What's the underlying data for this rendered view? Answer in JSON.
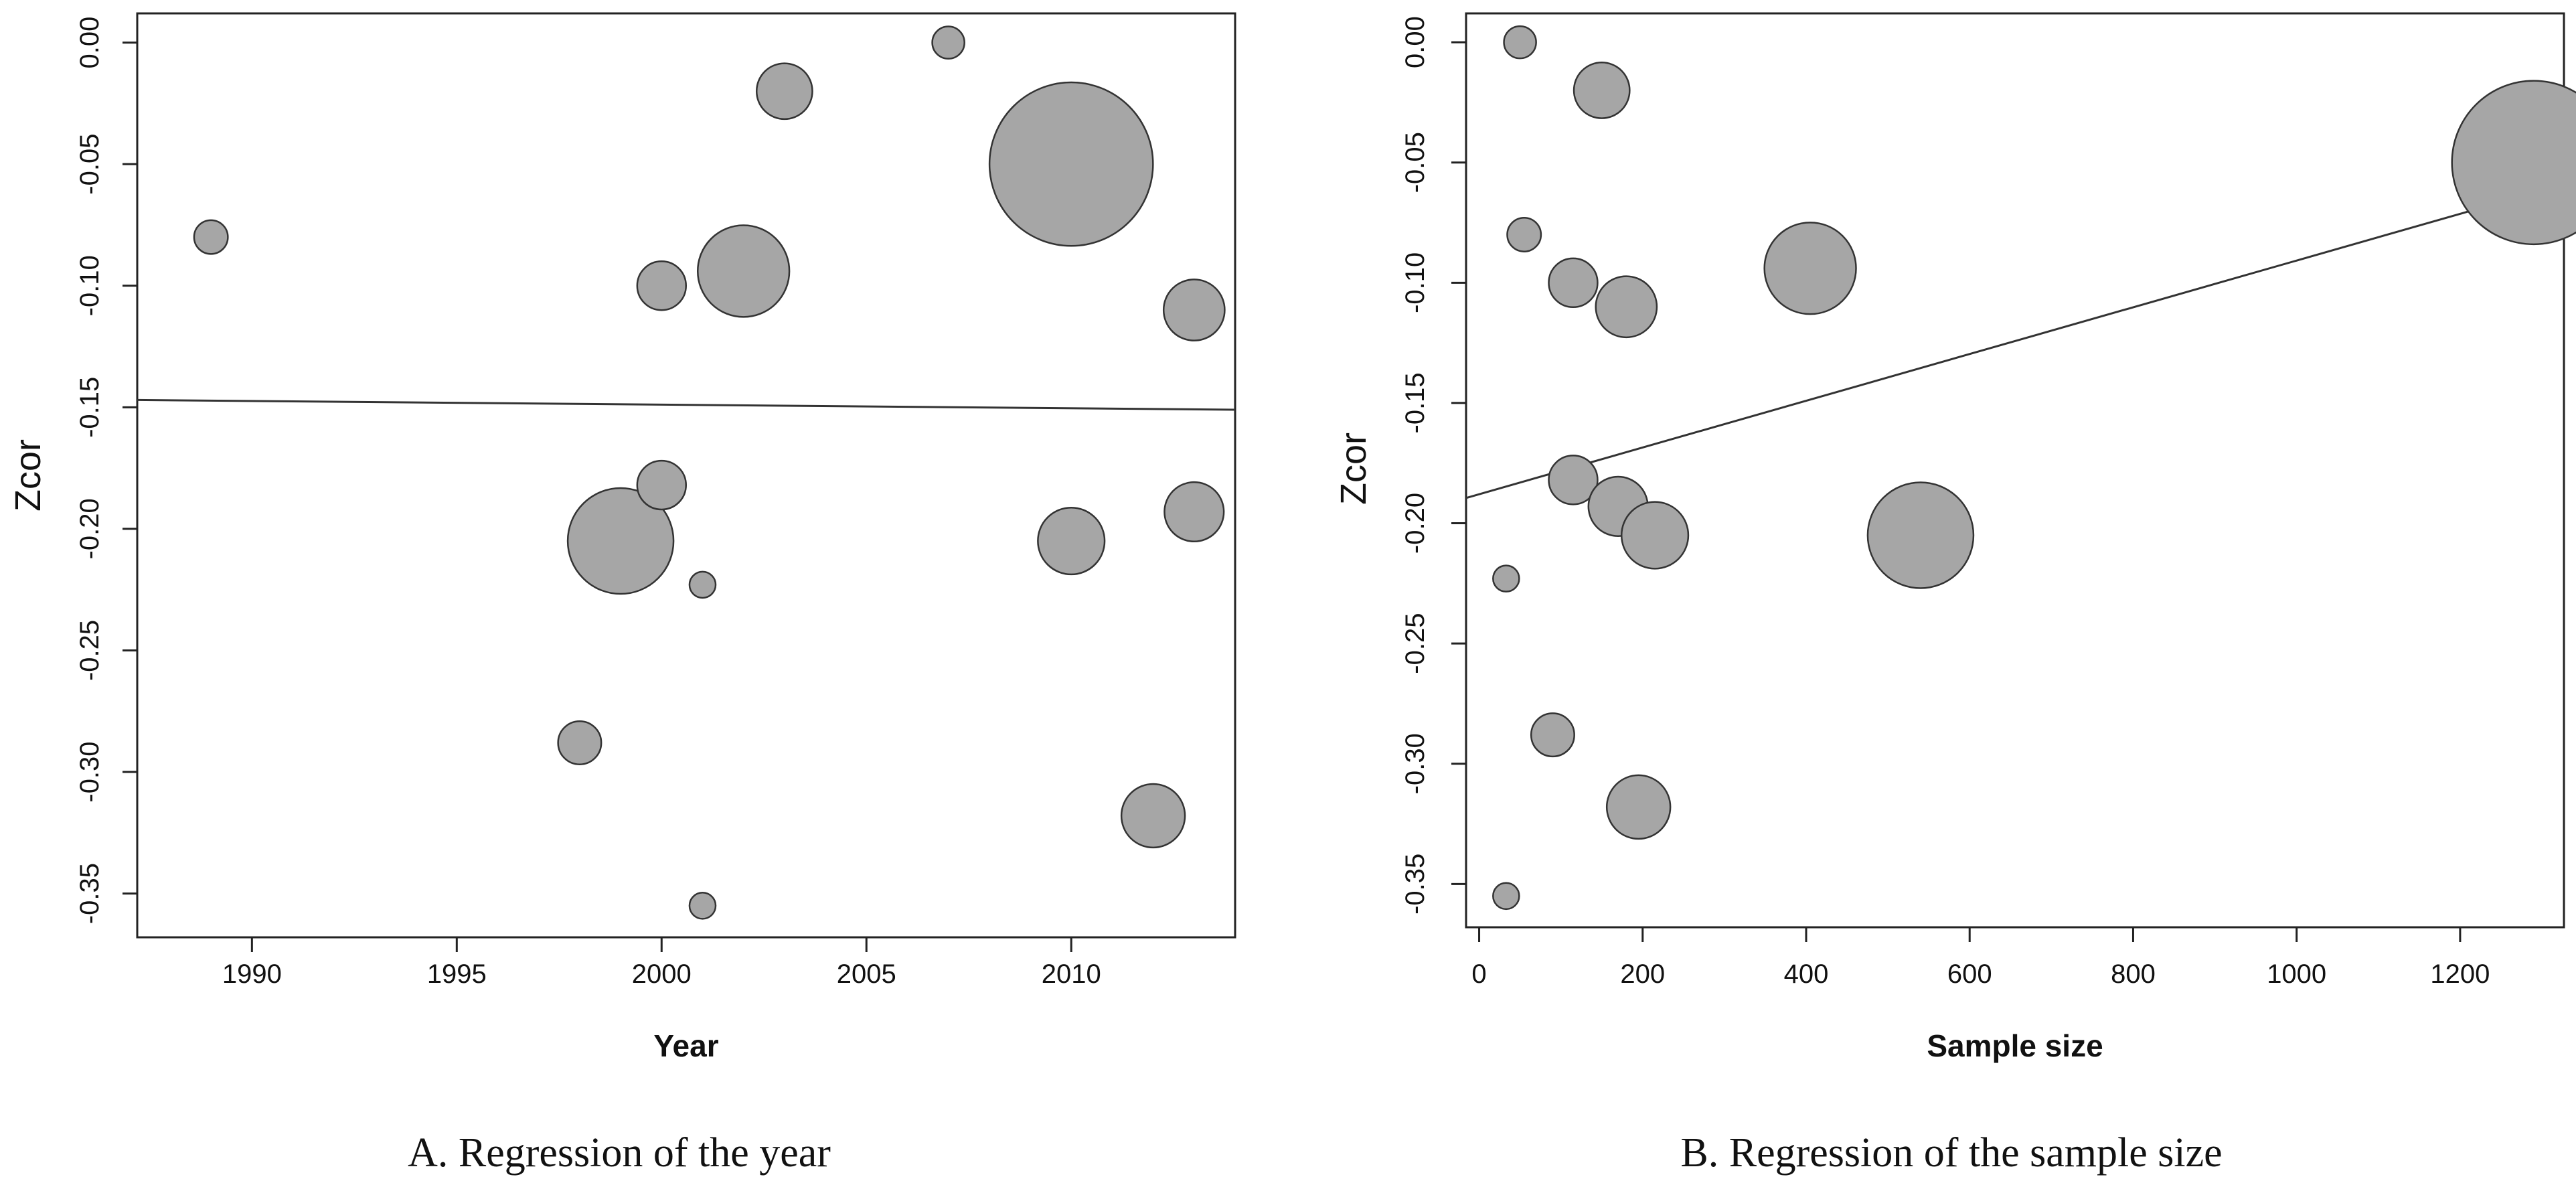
{
  "chart_data": [
    {
      "type": "scatter",
      "caption": "A. Regression of the year",
      "xlabel": "Year",
      "ylabel": "Zcor",
      "xlim": [
        1987.2,
        2014.0
      ],
      "ylim": [
        -0.368,
        0.012
      ],
      "xticks": [
        "1990",
        "1995",
        "2000",
        "2005",
        "2010"
      ],
      "yticks": [
        "0.00",
        "-0.05",
        "-0.10",
        "-0.15",
        "-0.20",
        "-0.25",
        "-0.30",
        "-0.35"
      ],
      "grid": false,
      "bubble_size_variable": "Sample size",
      "points": [
        {
          "x": 1989,
          "y": -0.08,
          "n": 55
        },
        {
          "x": 1998,
          "y": -0.288,
          "n": 90
        },
        {
          "x": 1999,
          "y": -0.205,
          "n": 540
        },
        {
          "x": 2000,
          "y": -0.1,
          "n": 115
        },
        {
          "x": 2000,
          "y": -0.182,
          "n": 115
        },
        {
          "x": 2001,
          "y": -0.223,
          "n": 33
        },
        {
          "x": 2001,
          "y": -0.355,
          "n": 33
        },
        {
          "x": 2002,
          "y": -0.094,
          "n": 405
        },
        {
          "x": 2003,
          "y": -0.02,
          "n": 150
        },
        {
          "x": 2007,
          "y": 0.0,
          "n": 50
        },
        {
          "x": 2010,
          "y": -0.05,
          "n": 1290
        },
        {
          "x": 2010,
          "y": -0.205,
          "n": 215
        },
        {
          "x": 2012,
          "y": -0.318,
          "n": 195
        },
        {
          "x": 2013,
          "y": -0.11,
          "n": 180
        },
        {
          "x": 2013,
          "y": -0.193,
          "n": 170
        }
      ],
      "regression_line": {
        "x": [
          1987.2,
          2014.0
        ],
        "y": [
          -0.147,
          -0.151
        ]
      }
    },
    {
      "type": "scatter",
      "caption": "B. Regression of the sample size",
      "xlabel": "Sample size",
      "ylabel": "Zcor",
      "xlim": [
        -16,
        1327
      ],
      "ylim": [
        -0.368,
        0.012
      ],
      "xticks": [
        "0",
        "200",
        "400",
        "600",
        "800",
        "1000",
        "1200"
      ],
      "yticks": [
        "0.00",
        "-0.05",
        "-0.10",
        "-0.15",
        "-0.20",
        "-0.25",
        "-0.30",
        "-0.35"
      ],
      "grid": false,
      "bubble_size_variable": "Sample size",
      "points": [
        {
          "x": 50,
          "y": 0.0,
          "n": 50
        },
        {
          "x": 150,
          "y": -0.02,
          "n": 150
        },
        {
          "x": 1290,
          "y": -0.05,
          "n": 1290
        },
        {
          "x": 55,
          "y": -0.08,
          "n": 55
        },
        {
          "x": 405,
          "y": -0.094,
          "n": 405
        },
        {
          "x": 115,
          "y": -0.1,
          "n": 115
        },
        {
          "x": 180,
          "y": -0.11,
          "n": 180
        },
        {
          "x": 115,
          "y": -0.182,
          "n": 115
        },
        {
          "x": 170,
          "y": -0.193,
          "n": 170
        },
        {
          "x": 215,
          "y": -0.205,
          "n": 215
        },
        {
          "x": 540,
          "y": -0.205,
          "n": 540
        },
        {
          "x": 33,
          "y": -0.223,
          "n": 33
        },
        {
          "x": 90,
          "y": -0.288,
          "n": 90
        },
        {
          "x": 195,
          "y": -0.318,
          "n": 195
        },
        {
          "x": 33,
          "y": -0.355,
          "n": 33
        }
      ],
      "regression_line": {
        "x": [
          -16,
          1327
        ],
        "y": [
          -0.1895,
          -0.059
        ]
      }
    }
  ],
  "colors": {
    "marker_fill": "#a6a6a6",
    "marker_stroke": "#333333",
    "axis": "#222222",
    "line": "#333333"
  }
}
